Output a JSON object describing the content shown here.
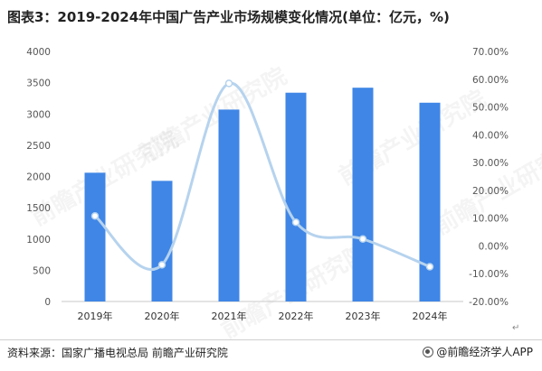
{
  "title": "图表3：2019-2024年中国广告产业市场规模变化情况(单位：亿元，%)",
  "source": "资料来源：国家广播电视总局 前瞻产业研究院",
  "credit": "@前瞻经济学人APP",
  "return_mark": "↵",
  "watermark": "前瞻产业研究院",
  "colors": {
    "bar": "#3f86e6",
    "line": "#b6d3ee",
    "axis": "#c8c8c8",
    "text": "#555555"
  },
  "chart_data": {
    "type": "bar+line",
    "categories": [
      "2019年",
      "2020年",
      "2021年",
      "2022年",
      "2023年",
      "2024年"
    ],
    "series": [
      {
        "type": "bar",
        "axis": "left",
        "values": [
          2060,
          1930,
          3070,
          3340,
          3420,
          3180
        ]
      },
      {
        "type": "line",
        "axis": "right",
        "smooth": true,
        "values": [
          10.8,
          -6.8,
          58.5,
          8.5,
          2.5,
          -7.5
        ]
      }
    ],
    "left_axis": {
      "min": 0,
      "max": 4000,
      "ticks": [
        "0",
        "500",
        "1000",
        "1500",
        "2000",
        "2500",
        "3000",
        "3500",
        "4000"
      ]
    },
    "right_axis": {
      "min": -20,
      "max": 70,
      "ticks": [
        "-20.00%",
        "-10.00%",
        "0.00%",
        "10.00%",
        "20.00%",
        "30.00%",
        "40.00%",
        "50.00%",
        "60.00%",
        "70.00%"
      ]
    },
    "grid": false,
    "legend": "none"
  }
}
